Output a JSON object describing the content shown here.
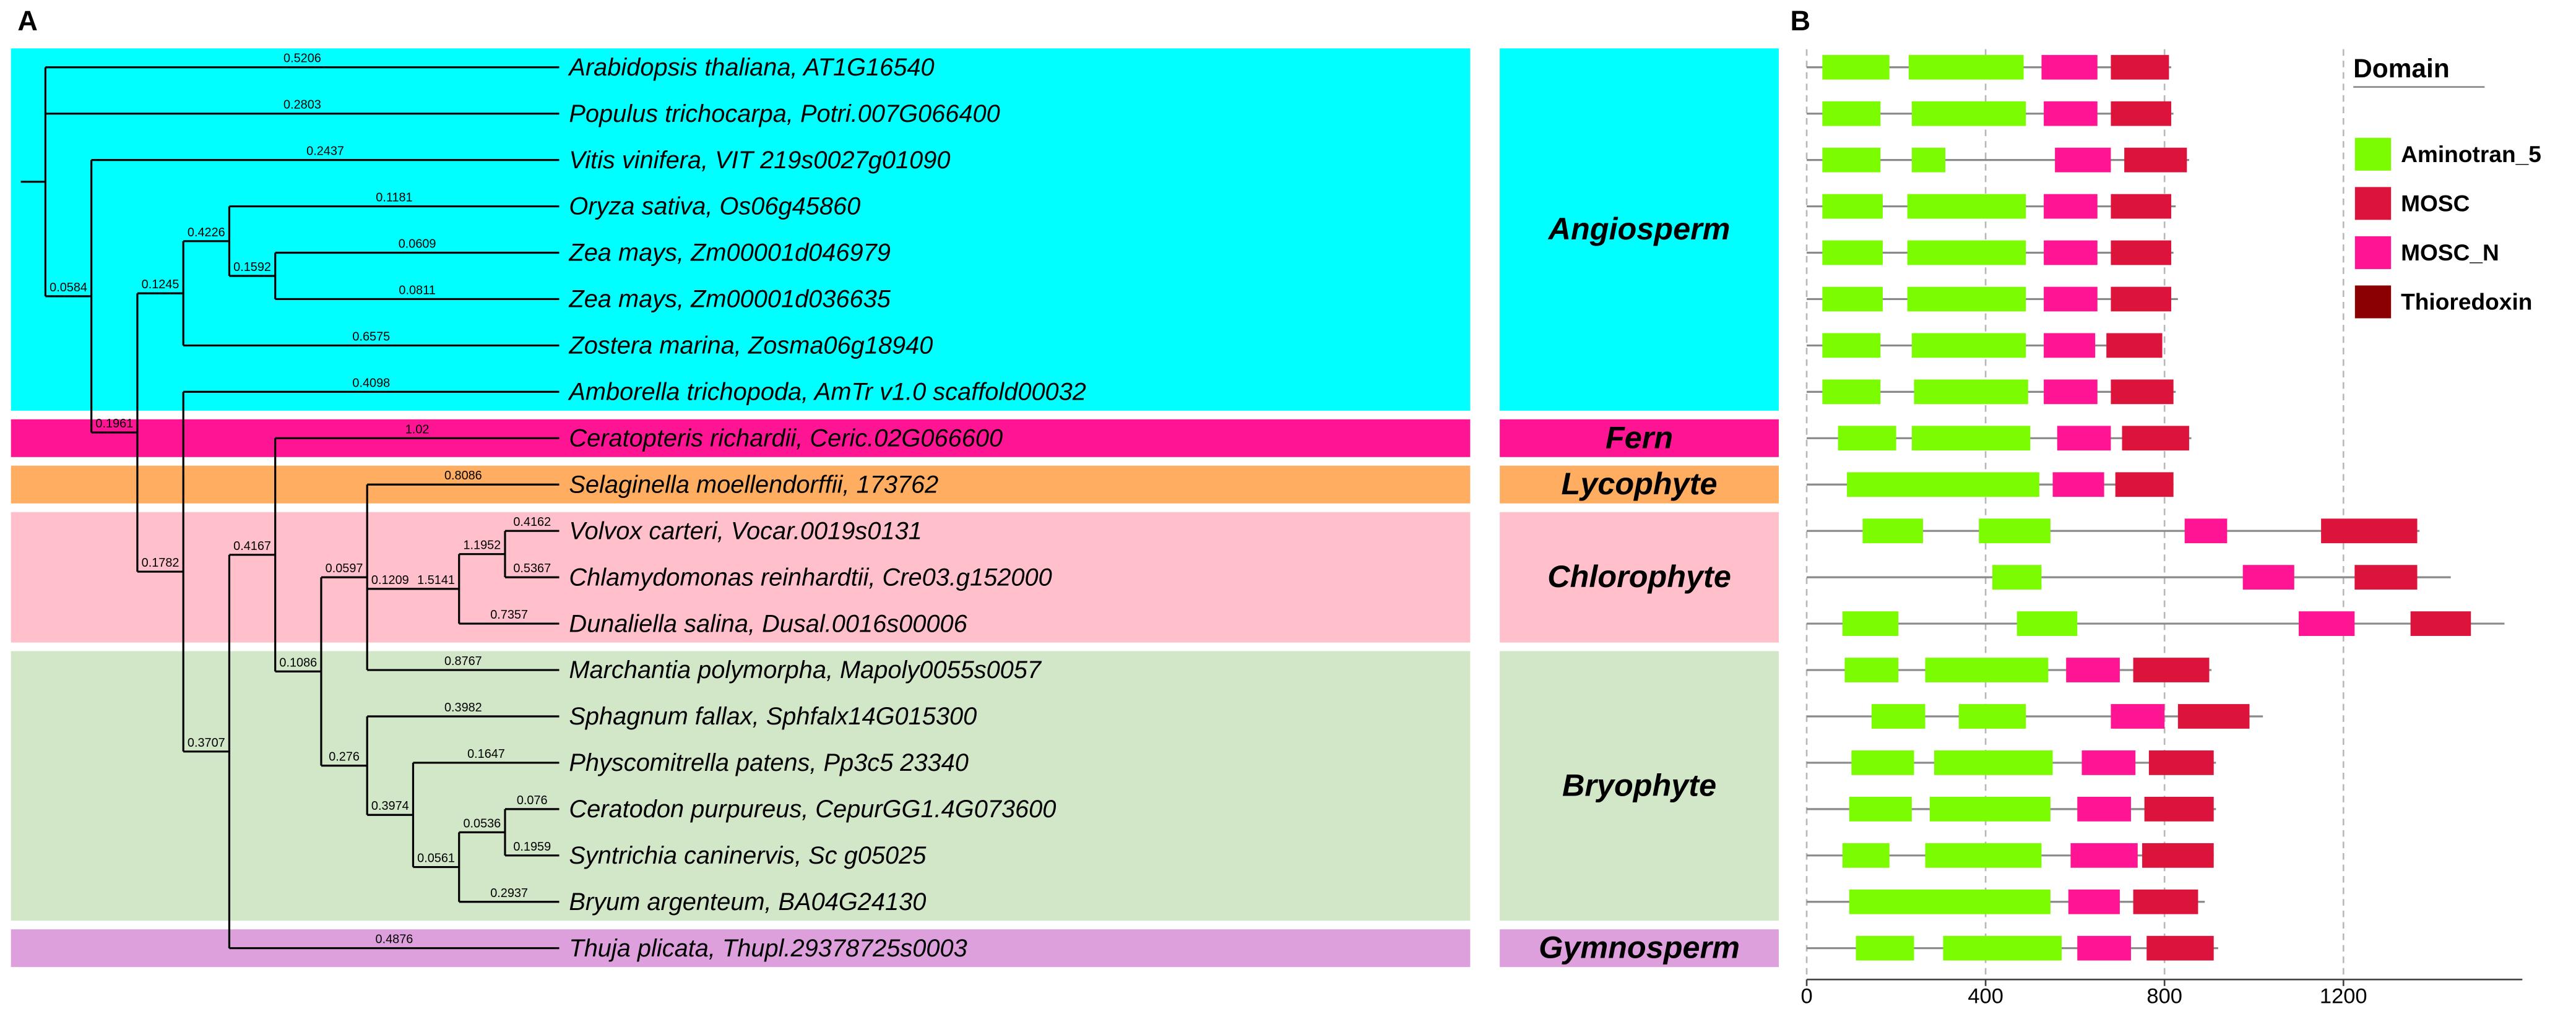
{
  "panel_labels": [
    "A",
    "B"
  ],
  "tree": {
    "children": [
      {
        "label": "Arabidopsis thaliana, AT1G16540",
        "length": 0.5206
      },
      {
        "label": "Populus trichocarpa, Potri.007G066400",
        "length": 0.2803
      },
      {
        "length": 0.0584,
        "children": [
          {
            "label": "Vitis vinifera, VIT 219s0027g01090",
            "length": 0.2437
          },
          {
            "length": 0.1961,
            "children": [
              {
                "length": 0.1245,
                "children": [
                  {
                    "length": 0.4226,
                    "children": [
                      {
                        "label": "Oryza sativa, Os06g45860",
                        "length": 0.1181
                      },
                      {
                        "length": 0.1592,
                        "children": [
                          {
                            "label": "Zea mays, Zm00001d046979",
                            "length": 0.0609
                          },
                          {
                            "label": "Zea mays, Zm00001d036635",
                            "length": 0.0811
                          }
                        ]
                      }
                    ]
                  },
                  {
                    "label": "Zostera marina, Zosma06g18940",
                    "length": 0.6575
                  }
                ]
              },
              {
                "length": 0.1782,
                "children": [
                  {
                    "label": "Amborella trichopoda, AmTr v1.0 scaffold00032",
                    "length": 0.4098
                  },
                  {
                    "length": 0.3707,
                    "children": [
                      {
                        "length": 0.4167,
                        "children": [
                          {
                            "label": "Ceratopteris richardii, Ceric.02G066600",
                            "length": 1.02
                          },
                          {
                            "length": 0.1086,
                            "children": [
                              {
                                "length": 0.0597,
                                "children": [
                                  {
                                    "label": "Selaginella moellendorffii, 173762",
                                    "length": 0.8086
                                  },
                                  {
                                    "length": 0.1209,
                                    "children": [
                                      {
                                        "length": 1.5141,
                                        "children": [
                                          {
                                            "length": 1.1952,
                                            "children": [
                                              {
                                                "label": "Volvox carteri, Vocar.0019s0131",
                                                "length": 0.4162
                                              },
                                              {
                                                "label": "Chlamydomonas reinhardtii, Cre03.g152000",
                                                "length": 0.5367
                                              }
                                            ]
                                          },
                                          {
                                            "label": "Dunaliella salina, Dusal.0016s00006",
                                            "length": 0.7357
                                          }
                                        ]
                                      }
                                    ]
                                  },
                                  {
                                    "label": "Marchantia polymorpha, Mapoly0055s0057",
                                    "length": 0.8767
                                  }
                                ]
                              },
                              {
                                "length": 0.276,
                                "children": [
                                  {
                                    "label": "Sphagnum fallax, Sphfalx14G015300",
                                    "length": 0.3982
                                  },
                                  {
                                    "length": 0.3974,
                                    "children": [
                                      {
                                        "label": "Physcomitrella patens, Pp3c5 23340",
                                        "length": 0.1647
                                      },
                                      {
                                        "length": 0.0561,
                                        "children": [
                                          {
                                            "length": 0.0536,
                                            "children": [
                                              {
                                                "label": "Ceratodon purpureus, CepurGG1.4G073600",
                                                "length": 0.076
                                              },
                                              {
                                                "label": "Syntrichia caninervis, Sc g05025",
                                                "length": 0.1959
                                              }
                                            ]
                                          },
                                          {
                                            "label": "Bryum argenteum, BA04G24130",
                                            "length": 0.2937
                                          }
                                        ]
                                      }
                                    ]
                                  }
                                ]
                              }
                            ]
                          }
                        ]
                      },
                      {
                        "label": "Thuja plicata, Thupl.29378725s0003",
                        "length": 0.4876
                      }
                    ]
                  }
                ]
              }
            ]
          }
        ]
      }
    ]
  },
  "groups": [
    {
      "name": "Angiosperm",
      "color": "#00ffff"
    },
    {
      "name": "Fern",
      "color": "#ff1493"
    },
    {
      "name": "Lycophyte",
      "color": "#ffad60"
    },
    {
      "name": "Chlorophyte",
      "color": "#ffc0cb"
    },
    {
      "name": "Bryophyte",
      "color": "#d2e6c8"
    },
    {
      "name": "Gymnosperm",
      "color": "#dda0dd"
    }
  ],
  "chart_data": {
    "type": "domain-architecture",
    "legend_title": "Domain",
    "series": [
      {
        "name": "Aminotran_5",
        "color": "#7cfc00"
      },
      {
        "name": "MOSC",
        "color": "#dc143c"
      },
      {
        "name": "MOSC_N",
        "color": "#ff1493"
      },
      {
        "name": "Thioredoxin",
        "color": "#8b0000"
      }
    ],
    "xlim": [
      0,
      1600
    ],
    "xticks": [
      0,
      400,
      800,
      1200
    ],
    "grid": true,
    "proteins": [
      {
        "length": 815,
        "domains": [
          {
            "name": "Aminotran_5",
            "start": 35,
            "end": 185
          },
          {
            "name": "Aminotran_5",
            "start": 228,
            "end": 485
          },
          {
            "name": "MOSC_N",
            "start": 525,
            "end": 650
          },
          {
            "name": "MOSC",
            "start": 680,
            "end": 810
          }
        ]
      },
      {
        "length": 820,
        "domains": [
          {
            "name": "Aminotran_5",
            "start": 35,
            "end": 165
          },
          {
            "name": "Aminotran_5",
            "start": 235,
            "end": 490
          },
          {
            "name": "MOSC_N",
            "start": 530,
            "end": 650
          },
          {
            "name": "MOSC",
            "start": 680,
            "end": 815
          }
        ]
      },
      {
        "length": 855,
        "domains": [
          {
            "name": "Aminotran_5",
            "start": 35,
            "end": 165
          },
          {
            "name": "Aminotran_5",
            "start": 235,
            "end": 310
          },
          {
            "name": "MOSC_N",
            "start": 555,
            "end": 680
          },
          {
            "name": "MOSC",
            "start": 710,
            "end": 850
          }
        ]
      },
      {
        "length": 825,
        "domains": [
          {
            "name": "Aminotran_5",
            "start": 35,
            "end": 170
          },
          {
            "name": "Aminotran_5",
            "start": 225,
            "end": 490
          },
          {
            "name": "MOSC_N",
            "start": 530,
            "end": 650
          },
          {
            "name": "MOSC",
            "start": 680,
            "end": 815
          }
        ]
      },
      {
        "length": 820,
        "domains": [
          {
            "name": "Aminotran_5",
            "start": 35,
            "end": 170
          },
          {
            "name": "Aminotran_5",
            "start": 225,
            "end": 490
          },
          {
            "name": "MOSC_N",
            "start": 530,
            "end": 650
          },
          {
            "name": "MOSC",
            "start": 680,
            "end": 815
          }
        ]
      },
      {
        "length": 830,
        "domains": [
          {
            "name": "Aminotran_5",
            "start": 35,
            "end": 170
          },
          {
            "name": "Aminotran_5",
            "start": 225,
            "end": 490
          },
          {
            "name": "MOSC_N",
            "start": 530,
            "end": 650
          },
          {
            "name": "MOSC",
            "start": 680,
            "end": 815
          }
        ]
      },
      {
        "length": 790,
        "domains": [
          {
            "name": "Aminotran_5",
            "start": 35,
            "end": 165
          },
          {
            "name": "Aminotran_5",
            "start": 235,
            "end": 490
          },
          {
            "name": "MOSC_N",
            "start": 530,
            "end": 645
          },
          {
            "name": "MOSC",
            "start": 670,
            "end": 795
          }
        ]
      },
      {
        "length": 825,
        "domains": [
          {
            "name": "Aminotran_5",
            "start": 35,
            "end": 165
          },
          {
            "name": "Aminotran_5",
            "start": 240,
            "end": 495
          },
          {
            "name": "MOSC_N",
            "start": 530,
            "end": 650
          },
          {
            "name": "MOSC",
            "start": 680,
            "end": 820
          }
        ]
      },
      {
        "length": 860,
        "domains": [
          {
            "name": "Aminotran_5",
            "start": 70,
            "end": 200
          },
          {
            "name": "Aminotran_5",
            "start": 235,
            "end": 500
          },
          {
            "name": "MOSC_N",
            "start": 560,
            "end": 680
          },
          {
            "name": "MOSC",
            "start": 705,
            "end": 855
          }
        ]
      },
      {
        "length": 820,
        "domains": [
          {
            "name": "Aminotran_5",
            "start": 90,
            "end": 520
          },
          {
            "name": "MOSC_N",
            "start": 550,
            "end": 665
          },
          {
            "name": "MOSC",
            "start": 690,
            "end": 820
          }
        ]
      },
      {
        "length": 1370,
        "domains": [
          {
            "name": "Aminotran_5",
            "start": 125,
            "end": 260
          },
          {
            "name": "Aminotran_5",
            "start": 385,
            "end": 545
          },
          {
            "name": "MOSC_N",
            "start": 845,
            "end": 940
          },
          {
            "name": "MOSC",
            "start": 1150,
            "end": 1365
          }
        ]
      },
      {
        "length": 1440,
        "domains": [
          {
            "name": "Aminotran_5",
            "start": 415,
            "end": 525
          },
          {
            "name": "MOSC_N",
            "start": 975,
            "end": 1090
          },
          {
            "name": "MOSC",
            "start": 1225,
            "end": 1365
          }
        ]
      },
      {
        "length": 1560,
        "domains": [
          {
            "name": "Aminotran_5",
            "start": 80,
            "end": 205
          },
          {
            "name": "Aminotran_5",
            "start": 470,
            "end": 605
          },
          {
            "name": "MOSC_N",
            "start": 1100,
            "end": 1225
          },
          {
            "name": "MOSC",
            "start": 1350,
            "end": 1485
          }
        ]
      },
      {
        "length": 905,
        "domains": [
          {
            "name": "Aminotran_5",
            "start": 85,
            "end": 205
          },
          {
            "name": "Aminotran_5",
            "start": 265,
            "end": 540
          },
          {
            "name": "MOSC_N",
            "start": 580,
            "end": 700
          },
          {
            "name": "MOSC",
            "start": 730,
            "end": 900
          }
        ]
      },
      {
        "length": 1020,
        "domains": [
          {
            "name": "Aminotran_5",
            "start": 145,
            "end": 265
          },
          {
            "name": "Aminotran_5",
            "start": 340,
            "end": 490
          },
          {
            "name": "MOSC_N",
            "start": 680,
            "end": 800
          },
          {
            "name": "MOSC",
            "start": 830,
            "end": 990
          }
        ]
      },
      {
        "length": 915,
        "domains": [
          {
            "name": "Aminotran_5",
            "start": 100,
            "end": 240
          },
          {
            "name": "Aminotran_5",
            "start": 285,
            "end": 550
          },
          {
            "name": "MOSC_N",
            "start": 615,
            "end": 735
          },
          {
            "name": "MOSC",
            "start": 765,
            "end": 910
          }
        ]
      },
      {
        "length": 915,
        "domains": [
          {
            "name": "Aminotran_5",
            "start": 95,
            "end": 235
          },
          {
            "name": "Aminotran_5",
            "start": 275,
            "end": 545
          },
          {
            "name": "MOSC_N",
            "start": 605,
            "end": 725
          },
          {
            "name": "MOSC",
            "start": 755,
            "end": 910
          }
        ]
      },
      {
        "length": 910,
        "domains": [
          {
            "name": "Aminotran_5",
            "start": 80,
            "end": 185
          },
          {
            "name": "Aminotran_5",
            "start": 265,
            "end": 525
          },
          {
            "name": "MOSC_N",
            "start": 590,
            "end": 740
          },
          {
            "name": "MOSC",
            "start": 750,
            "end": 910
          }
        ]
      },
      {
        "length": 890,
        "domains": [
          {
            "name": "Aminotran_5",
            "start": 95,
            "end": 545
          },
          {
            "name": "MOSC_N",
            "start": 585,
            "end": 700
          },
          {
            "name": "MOSC",
            "start": 730,
            "end": 875
          }
        ]
      },
      {
        "length": 920,
        "domains": [
          {
            "name": "Aminotran_5",
            "start": 110,
            "end": 240
          },
          {
            "name": "Aminotran_5",
            "start": 305,
            "end": 570
          },
          {
            "name": "MOSC_N",
            "start": 605,
            "end": 725
          },
          {
            "name": "MOSC",
            "start": 760,
            "end": 910
          }
        ]
      }
    ]
  }
}
